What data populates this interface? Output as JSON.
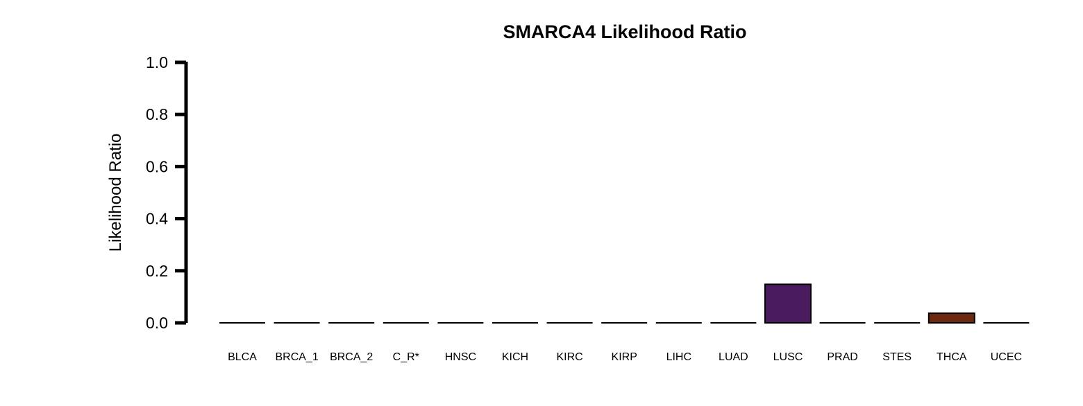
{
  "chart_data": {
    "type": "bar",
    "title": "SMARCA4 Likelihood Ratio",
    "xlabel": "",
    "ylabel": "Likelihood Ratio",
    "ylim": [
      0,
      1
    ],
    "yticks": [
      "0.0",
      "0.2",
      "0.4",
      "0.6",
      "0.8",
      "1.0"
    ],
    "grid": false,
    "legend": "none",
    "categories": [
      "BLCA",
      "BRCA_1",
      "BRCA_2",
      "C_R*",
      "HNSC",
      "KICH",
      "KIRC",
      "KIRP",
      "LIHC",
      "LUAD",
      "LUSC",
      "PRAD",
      "STES",
      "THCA",
      "UCEC"
    ],
    "values": [
      0,
      0,
      0,
      0,
      0,
      0,
      0,
      0,
      0,
      0,
      0.148,
      0,
      0,
      0.037,
      0
    ],
    "colors": [
      "#000000",
      "#000000",
      "#000000",
      "#000000",
      "#000000",
      "#000000",
      "#000000",
      "#000000",
      "#000000",
      "#000000",
      "#4a1b5e",
      "#000000",
      "#000000",
      "#6b2a10",
      "#000000"
    ]
  }
}
